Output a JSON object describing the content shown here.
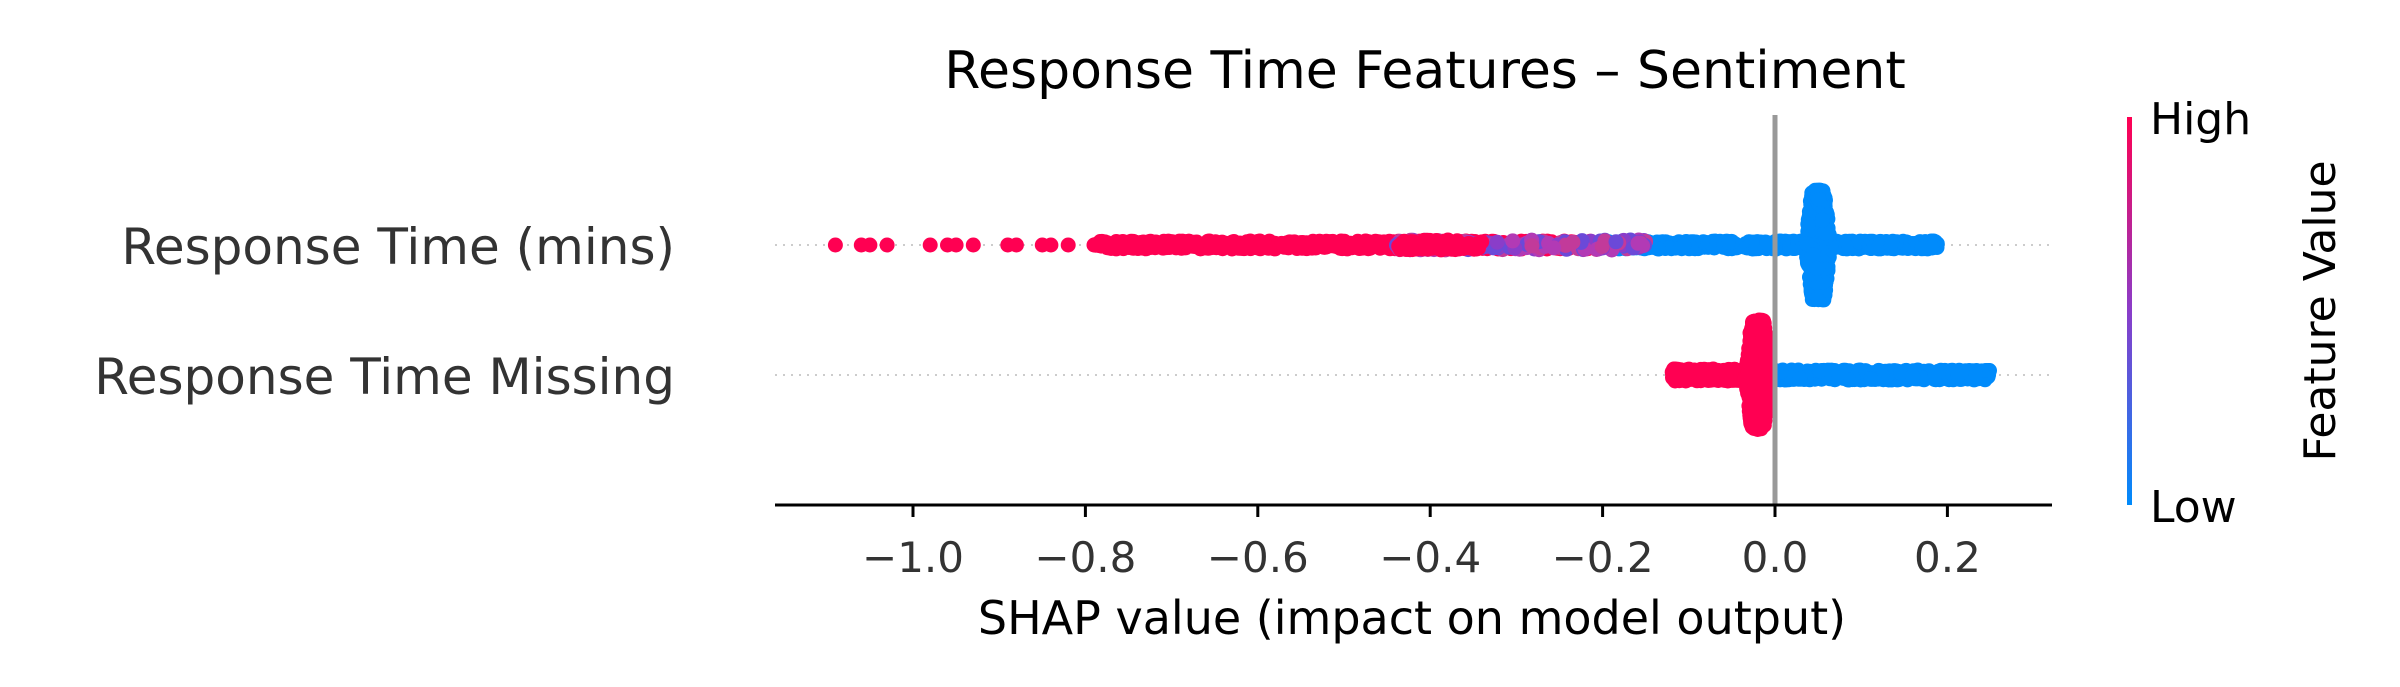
{
  "chart_data": {
    "type": "scatter",
    "subtype": "shap-beeswarm",
    "title": "Response Time Features – Sentiment",
    "xlabel": "SHAP value (impact on model output)",
    "ylabel": "",
    "xlim": [
      -1.16,
      0.32
    ],
    "x_ticks": [
      -1.0,
      -0.8,
      -0.6,
      -0.4,
      -0.2,
      0.0,
      0.2
    ],
    "x_tick_labels": [
      "−1.0",
      "−0.8",
      "−0.6",
      "−0.4",
      "−0.2",
      "0.0",
      "0.2"
    ],
    "zero_line": 0.0,
    "features": [
      {
        "name": "Response Time (mins)",
        "high_points": [
          -1.09,
          -1.06,
          -1.05,
          -1.03,
          -0.98,
          -0.96,
          -0.95,
          -0.93,
          -0.89,
          -0.88,
          -0.85,
          -0.84,
          -0.82,
          -0.79
        ],
        "high_range": [
          -0.79,
          -0.2
        ],
        "mixed_range": [
          -0.44,
          -0.15
        ],
        "low_range": [
          -0.2,
          0.19
        ],
        "cluster": {
          "x": 0.05,
          "spread": 0.015
        }
      },
      {
        "name": "Response Time Missing",
        "high_range": [
          -0.12,
          0.0
        ],
        "low_range": [
          0.0,
          0.25
        ],
        "cluster": {
          "x": -0.02,
          "spread": 0.015
        }
      }
    ],
    "colorbar": {
      "title": "Feature Value",
      "high_label": "High",
      "low_label": "Low",
      "high_color": "#ff0052",
      "low_color": "#008bfb"
    },
    "grid": false,
    "legend": "right"
  }
}
